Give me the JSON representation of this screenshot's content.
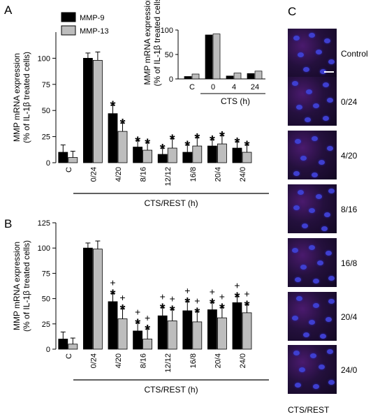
{
  "panels": {
    "a": "A",
    "b": "B",
    "c": "C"
  },
  "legend": {
    "mmp9": "MMP-9",
    "mmp13": "MMP-13",
    "mmp9_color": "#000000",
    "mmp13_color": "#bdbdbd"
  },
  "inset": {
    "ylabel_line1": "MMP mRNA expression",
    "ylabel_line2": "(% of IL-1β treated cells)",
    "xlabel": "CTS (h)"
  },
  "panel_c": {
    "labels": [
      "Control",
      "0/24",
      "4/20",
      "8/16",
      "16/8",
      "20/4",
      "24/0"
    ],
    "caption": "CTS/REST"
  },
  "chart_data": [
    {
      "type": "bar",
      "panel": "A",
      "categories": [
        "C",
        "0/24",
        "4/20",
        "8/16",
        "12/12",
        "16/8",
        "20/4",
        "24/0"
      ],
      "series": [
        {
          "name": "MMP-9",
          "values": [
            10,
            100,
            47,
            15,
            8,
            10,
            16,
            14
          ],
          "errors": [
            7,
            5,
            8,
            6,
            6,
            7,
            6,
            6
          ]
        },
        {
          "name": "MMP-13",
          "values": [
            5,
            98,
            30,
            12,
            14,
            16,
            18,
            10
          ],
          "errors": [
            6,
            8,
            8,
            7,
            9,
            8,
            8,
            7
          ]
        }
      ],
      "significance": {
        "MMP-9": [
          "",
          "",
          "*",
          "*",
          "*",
          "*",
          "*",
          "*"
        ],
        "MMP-13": [
          "",
          "",
          "*",
          "*",
          "*",
          "*",
          "*",
          "*"
        ]
      },
      "ylabel_line1": "MMP mRNA expression",
      "ylabel_line2": "(% of IL-1β treated cells)",
      "xlabel": "CTS/REST (h)",
      "ylim": [
        0,
        125
      ],
      "yticks": [
        0,
        25,
        50,
        75,
        100
      ]
    },
    {
      "type": "bar",
      "panel": "A inset",
      "categories": [
        "C",
        "0",
        "4",
        "24"
      ],
      "series": [
        {
          "name": "MMP-9",
          "values": [
            5,
            90,
            6,
            11
          ]
        },
        {
          "name": "MMP-13",
          "values": [
            10,
            92,
            12,
            16
          ]
        }
      ],
      "xlabel": "CTS (h)",
      "ylim": [
        0,
        100
      ],
      "yticks": [
        0,
        50,
        100
      ]
    },
    {
      "type": "bar",
      "panel": "B",
      "categories": [
        "C",
        "0/24",
        "4/20",
        "8/16",
        "12/12",
        "16/8",
        "20/4",
        "24/0"
      ],
      "series": [
        {
          "name": "MMP-9",
          "values": [
            10,
            100,
            47,
            18,
            33,
            38,
            39,
            46
          ],
          "errors": [
            7,
            5,
            8,
            8,
            8,
            9,
            7,
            6
          ]
        },
        {
          "name": "MMP-13",
          "values": [
            5,
            99,
            30,
            10,
            28,
            27,
            31,
            36
          ],
          "errors": [
            6,
            8,
            10,
            10,
            11,
            10,
            10,
            8
          ]
        }
      ],
      "significance": {
        "MMP-9": [
          "",
          "",
          "+*",
          "+*",
          "+*",
          "+*",
          "+*",
          "+*"
        ],
        "MMP-13": [
          "",
          "",
          "+*",
          "+*",
          "+*",
          "+*",
          "+*",
          "+*"
        ]
      },
      "ylabel_line1": "MMP mRNA expression",
      "ylabel_line2": "(% of IL-1β treated cells)",
      "xlabel": "CTS/REST (h)",
      "ylim": [
        0,
        125
      ],
      "yticks": [
        0,
        25,
        50,
        75,
        100,
        125
      ]
    }
  ]
}
